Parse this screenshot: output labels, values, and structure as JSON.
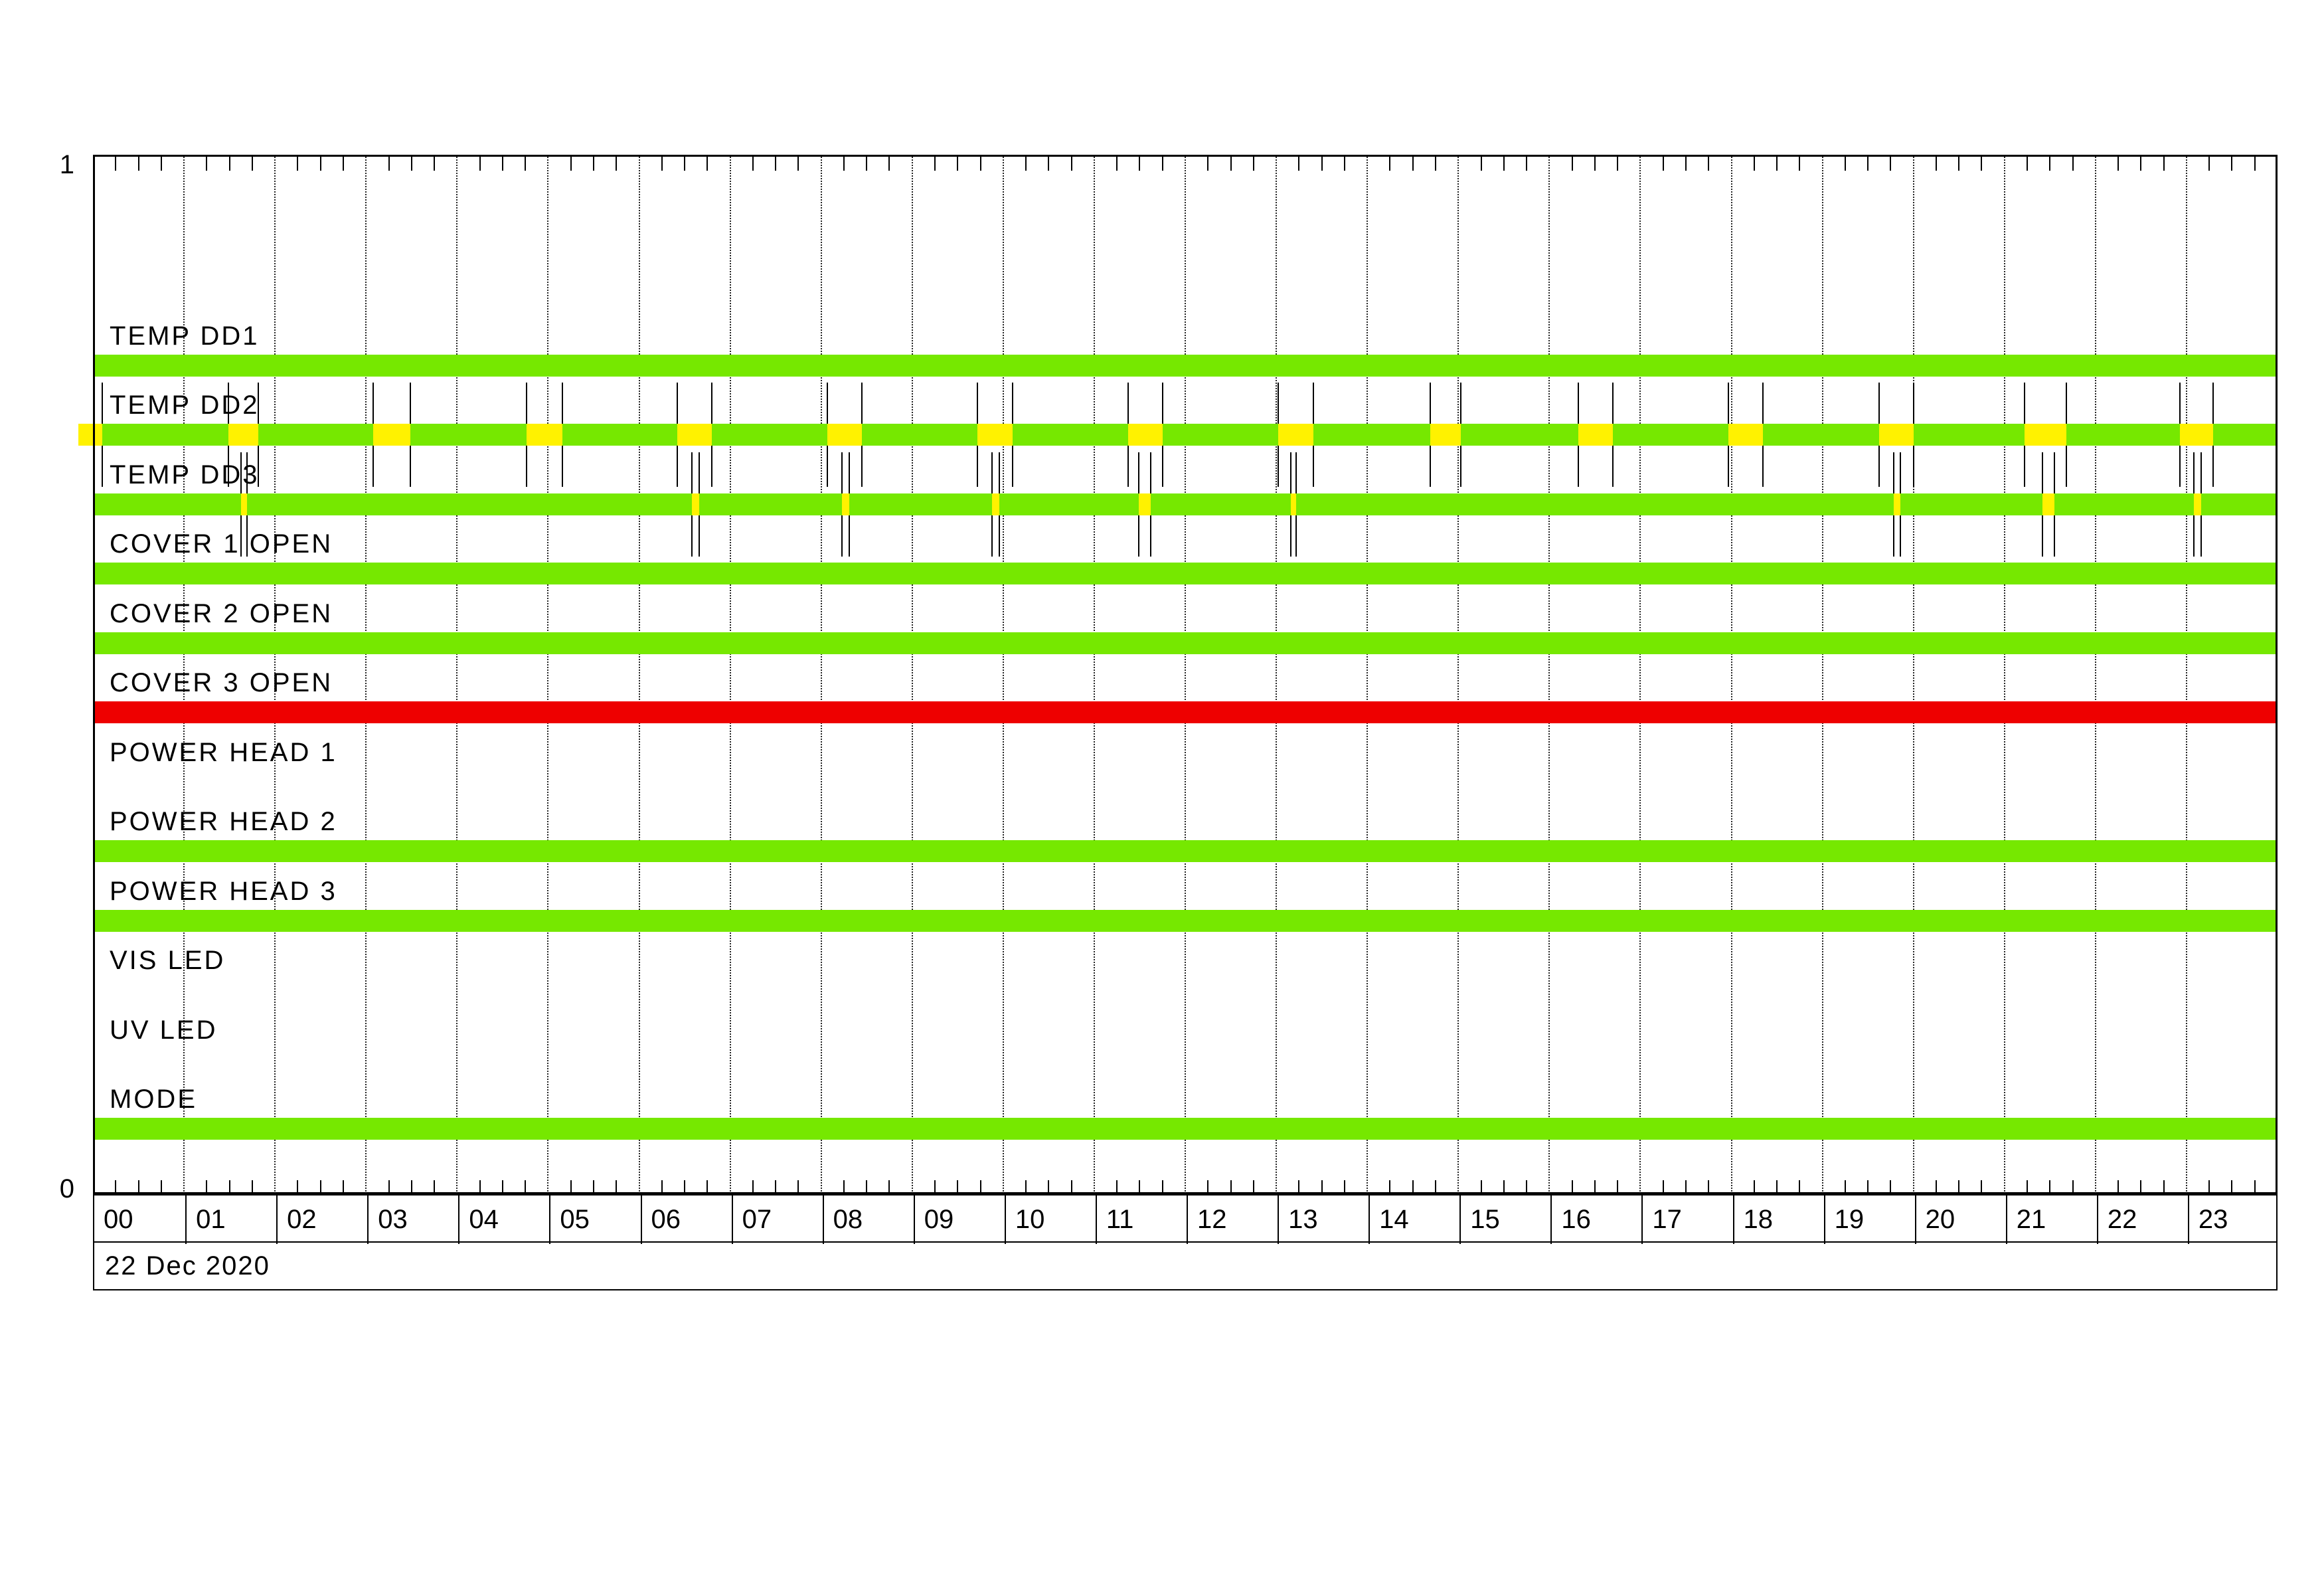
{
  "axis": {
    "y_top_label": "1",
    "y_bottom_label": "0",
    "date_label": "22 Dec 2020",
    "hour_labels": [
      "00",
      "01",
      "02",
      "03",
      "04",
      "05",
      "06",
      "07",
      "08",
      "09",
      "10",
      "11",
      "12",
      "13",
      "14",
      "15",
      "16",
      "17",
      "18",
      "19",
      "20",
      "21",
      "22",
      "23"
    ]
  },
  "colors": {
    "ok": "#76E800",
    "warn": "#FFF200",
    "alert": "#EE0000",
    "line": "#000000",
    "background": "#FFFFFF"
  },
  "chart_data": {
    "type": "status-timeline",
    "title": "",
    "date": "22 Dec 2020",
    "x_range_hours": [
      0,
      24
    ],
    "minor_tick_minutes": 15,
    "grid": "hourly-dotted",
    "legend_position": "none",
    "status_meaning": {
      "ok": "nominal (green)",
      "warn": "event/anomaly interval (yellow)",
      "alert": "alarm state (red)",
      "none": "no data (blank)"
    },
    "rows": [
      {
        "label": "TEMP DD1",
        "base": "ok",
        "warn_segments": []
      },
      {
        "label": "TEMP DD2",
        "base": "ok",
        "warn_segments": [
          [
            -0.16,
            0.1
          ],
          [
            1.49,
            1.82
          ],
          [
            3.08,
            3.49
          ],
          [
            4.76,
            5.16
          ],
          [
            6.42,
            6.8
          ],
          [
            8.07,
            8.45
          ],
          [
            9.72,
            10.1
          ],
          [
            11.37,
            11.75
          ],
          [
            13.02,
            13.41
          ],
          [
            14.69,
            15.03
          ],
          [
            16.32,
            16.7
          ],
          [
            17.97,
            18.35
          ],
          [
            19.62,
            20.0
          ],
          [
            21.22,
            21.68
          ],
          [
            22.93,
            23.29
          ]
        ]
      },
      {
        "label": "TEMP DD3",
        "base": "ok",
        "warn_segments": [
          [
            1.63,
            1.69
          ],
          [
            6.58,
            6.66
          ],
          [
            8.23,
            8.31
          ],
          [
            9.88,
            9.96
          ],
          [
            11.49,
            11.62
          ],
          [
            13.16,
            13.22
          ],
          [
            19.78,
            19.86
          ],
          [
            21.42,
            21.55
          ],
          [
            23.08,
            23.16
          ]
        ]
      },
      {
        "label": "COVER 1 OPEN",
        "base": "ok",
        "warn_segments": []
      },
      {
        "label": "COVER 2 OPEN",
        "base": "ok",
        "warn_segments": []
      },
      {
        "label": "COVER 3 OPEN",
        "base": "alert",
        "warn_segments": []
      },
      {
        "label": "POWER HEAD 1",
        "base": null,
        "warn_segments": []
      },
      {
        "label": "POWER HEAD 2",
        "base": "ok",
        "warn_segments": []
      },
      {
        "label": "POWER HEAD 3",
        "base": "ok",
        "warn_segments": []
      },
      {
        "label": "VIS LED",
        "base": null,
        "warn_segments": []
      },
      {
        "label": "UV LED",
        "base": null,
        "warn_segments": []
      },
      {
        "label": "MODE",
        "base": "ok",
        "warn_segments": []
      }
    ]
  }
}
